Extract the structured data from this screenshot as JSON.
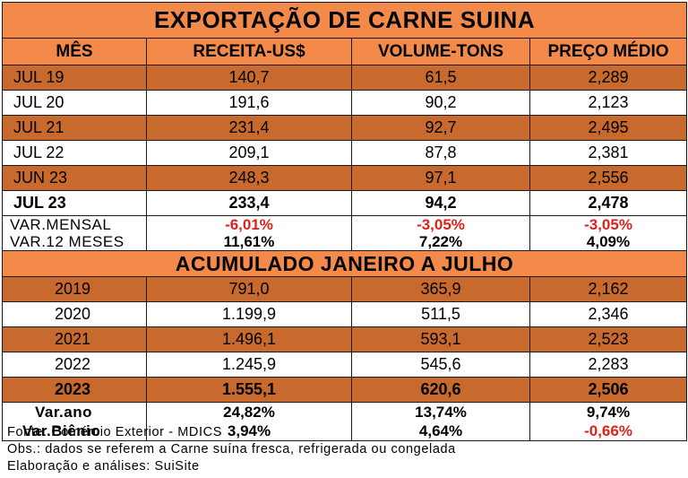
{
  "title": "EXPORTAÇÃO DE CARNE SUINA",
  "headers": [
    "MÊS",
    "RECEITA-US$",
    "VOLUME-TONS",
    "PREÇO MÉDIO"
  ],
  "monthly": [
    {
      "label": "JUL 19",
      "receita": "140,7",
      "volume": "61,5",
      "preco": "2,289"
    },
    {
      "label": "JUL 20",
      "receita": "191,6",
      "volume": "90,2",
      "preco": "2,123"
    },
    {
      "label": "JUL 21",
      "receita": "231,4",
      "volume": "92,7",
      "preco": "2,495"
    },
    {
      "label": "JUL 22",
      "receita": "209,1",
      "volume": "87,8",
      "preco": "2,381"
    },
    {
      "label": "JUN 23",
      "receita": "248,3",
      "volume": "97,1",
      "preco": "2,556"
    },
    {
      "label": "JUL 23",
      "receita": "233,4",
      "volume": "94,2",
      "preco": "2,478"
    }
  ],
  "monthly_vars": [
    {
      "label": "VAR.MENSAL",
      "receita": "-6,01%",
      "volume": "-3,05%",
      "preco": "-3,05%"
    },
    {
      "label": "VAR.12 MESES",
      "receita": "11,61%",
      "volume": "7,22%",
      "preco": "4,09%"
    }
  ],
  "section_title": "ACUMULADO JANEIRO A JULHO",
  "yearly": [
    {
      "label": "2019",
      "receita": "791,0",
      "volume": "365,9",
      "preco": "2,162"
    },
    {
      "label": "2020",
      "receita": "1.199,9",
      "volume": "511,5",
      "preco": "2,346"
    },
    {
      "label": "2021",
      "receita": "1.496,1",
      "volume": "593,1",
      "preco": "2,523"
    },
    {
      "label": "2022",
      "receita": "1.245,9",
      "volume": "545,6",
      "preco": "2,283"
    },
    {
      "label": "2023",
      "receita": "1.555,1",
      "volume": "620,6",
      "preco": "2,506"
    }
  ],
  "yearly_vars": [
    {
      "label": "Var.ano",
      "receita": "24,82%",
      "volume": "13,74%",
      "preco": "9,74%"
    },
    {
      "label": "Var.Biênio",
      "receita": "3,94%",
      "volume": "4,64%",
      "preco": "-0,66%"
    }
  ],
  "notes": {
    "fonte": "Fonte: Comércio Exterior - MDICS",
    "obs": "Obs.: dados se referem a Carne suína fresca, refrigerada ou congelada",
    "elaboracao": "Elaboração e análises: SuiSite"
  },
  "colors": {
    "header": "#f48a4a",
    "band_dark": "#c8692e",
    "band_light": "#ffffff",
    "negative": "#e0201c"
  }
}
